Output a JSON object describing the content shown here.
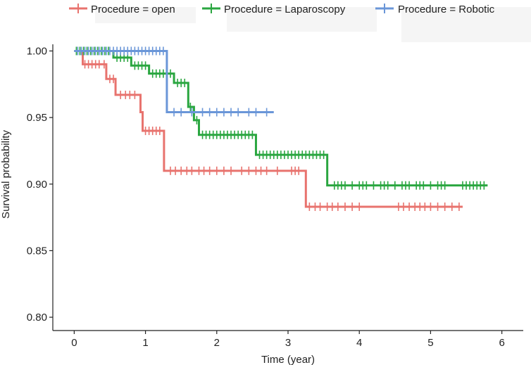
{
  "chart_data": {
    "type": "line",
    "title": "",
    "xlabel": "Time (year)",
    "ylabel": "Survival probability",
    "xlim": [
      -0.3,
      6.3
    ],
    "ylim": [
      0.79,
      1.005
    ],
    "x_ticks": [
      0,
      1,
      2,
      3,
      4,
      5,
      6
    ],
    "x_tick_labels": [
      "0",
      "1",
      "2",
      "3",
      "4",
      "5",
      "6"
    ],
    "y_ticks": [
      0.8,
      0.85,
      0.9,
      0.95,
      1.0
    ],
    "y_tick_labels": [
      "0.80",
      "0.85",
      "0.90",
      "0.95",
      "1.00"
    ],
    "grid": false,
    "legend_position": "top",
    "series": [
      {
        "name": "Procedure = open",
        "color": "#e8736e",
        "steps": [
          [
            0,
            1.0
          ],
          [
            0.12,
            0.99
          ],
          [
            0.45,
            0.979
          ],
          [
            0.58,
            0.967
          ],
          [
            0.93,
            0.954
          ],
          [
            0.96,
            0.94
          ],
          [
            1.26,
            0.91
          ],
          [
            3.25,
            0.883
          ],
          [
            5.45,
            0.883
          ]
        ],
        "censor_times": [
          0.15,
          0.2,
          0.25,
          0.3,
          0.35,
          0.42,
          0.5,
          0.55,
          0.65,
          0.72,
          0.78,
          0.85,
          1.0,
          1.05,
          1.1,
          1.15,
          1.2,
          1.35,
          1.42,
          1.5,
          1.58,
          1.65,
          1.75,
          1.82,
          1.9,
          2.0,
          2.1,
          2.2,
          2.35,
          2.45,
          2.55,
          2.62,
          2.7,
          2.85,
          3.05,
          3.1,
          3.15,
          3.3,
          3.38,
          3.45,
          3.55,
          3.62,
          3.7,
          3.8,
          3.9,
          4.0,
          4.55,
          4.62,
          4.7,
          4.78,
          4.85,
          4.92,
          5.0,
          5.1,
          5.2,
          5.3,
          5.4
        ]
      },
      {
        "name": "Procedure = Laparoscopy",
        "color": "#2aa640",
        "steps": [
          [
            0,
            1.0
          ],
          [
            0.55,
            0.995
          ],
          [
            0.8,
            0.989
          ],
          [
            1.05,
            0.983
          ],
          [
            1.4,
            0.976
          ],
          [
            1.6,
            0.958
          ],
          [
            1.68,
            0.948
          ],
          [
            1.75,
            0.937
          ],
          [
            2.55,
            0.922
          ],
          [
            3.55,
            0.899
          ],
          [
            5.8,
            0.899
          ]
        ],
        "censor_times": [
          0.03,
          0.08,
          0.13,
          0.18,
          0.23,
          0.28,
          0.33,
          0.38,
          0.43,
          0.48,
          0.6,
          0.65,
          0.7,
          0.75,
          0.85,
          0.9,
          0.95,
          1.0,
          1.1,
          1.15,
          1.2,
          1.25,
          1.3,
          1.35,
          1.45,
          1.5,
          1.55,
          1.63,
          1.72,
          1.8,
          1.85,
          1.9,
          1.95,
          2.0,
          2.05,
          2.1,
          2.15,
          2.2,
          2.25,
          2.3,
          2.35,
          2.4,
          2.45,
          2.5,
          2.6,
          2.65,
          2.7,
          2.75,
          2.8,
          2.85,
          2.9,
          2.95,
          3.0,
          3.05,
          3.1,
          3.15,
          3.2,
          3.25,
          3.3,
          3.35,
          3.4,
          3.45,
          3.5,
          3.65,
          3.7,
          3.75,
          3.8,
          3.9,
          4.0,
          4.05,
          4.1,
          4.2,
          4.3,
          4.35,
          4.4,
          4.5,
          4.6,
          4.65,
          4.7,
          4.8,
          4.85,
          4.9,
          5.0,
          5.1,
          5.15,
          5.2,
          5.45,
          5.5,
          5.55,
          5.6,
          5.65,
          5.7,
          5.75
        ]
      },
      {
        "name": "Procedure = Robotic",
        "color": "#6a96d8",
        "steps": [
          [
            0,
            1.0
          ],
          [
            1.3,
            0.954
          ],
          [
            2.8,
            0.954
          ]
        ],
        "censor_times": [
          0.05,
          0.1,
          0.15,
          0.2,
          0.25,
          0.3,
          0.35,
          0.4,
          0.45,
          0.5,
          0.55,
          0.6,
          0.65,
          0.7,
          0.75,
          0.8,
          0.85,
          0.9,
          0.95,
          1.0,
          1.05,
          1.1,
          1.15,
          1.2,
          1.25,
          1.4,
          1.5,
          1.65,
          1.8,
          1.9,
          2.0,
          2.1,
          2.2,
          2.3,
          2.45,
          2.55,
          2.7
        ]
      }
    ]
  }
}
